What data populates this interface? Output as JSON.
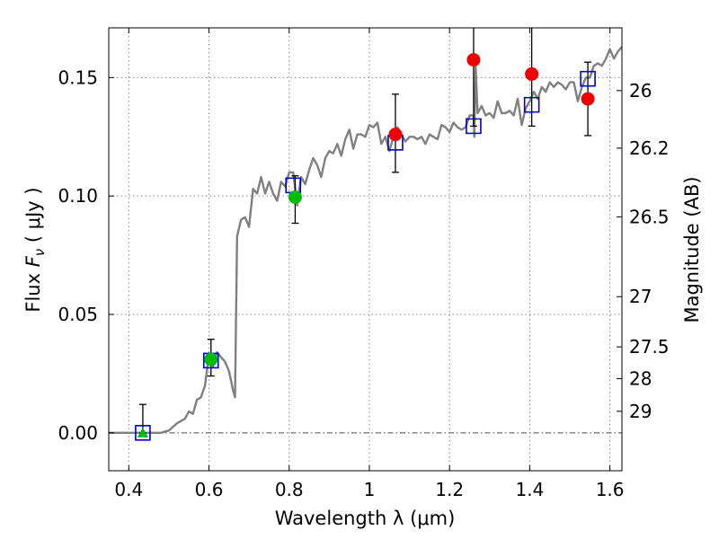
{
  "chart_data": {
    "type": "scatter",
    "title": "",
    "xlabel": "Wavelength  λ (μm)",
    "ylabel": "Flux  F_ν  ( μJy )",
    "ylabel_parts": {
      "pre": "Flux  ",
      "symbol": "F",
      "sub": "ν",
      "unit": "  ( μJy )"
    },
    "y2label": "Magnitude (AB)",
    "xlim": [
      0.35,
      1.63
    ],
    "ylim": [
      -0.016,
      0.171
    ],
    "grid": true,
    "x_ticks": [
      0.4,
      0.6,
      0.8,
      1.0,
      1.2,
      1.4,
      1.6
    ],
    "x_tick_labels": [
      "0.4",
      "0.6",
      "0.8",
      "1",
      "1.2",
      "1.4",
      "1.6"
    ],
    "y_ticks": [
      0.0,
      0.05,
      0.1,
      0.15
    ],
    "y_tick_labels": [
      "0.00",
      "0.05",
      "0.10",
      "0.15"
    ],
    "mag_ticks": [
      {
        "label": "26",
        "flux": 0.1445
      },
      {
        "label": "26.2",
        "flux": 0.1202
      },
      {
        "label": "26.5",
        "flux": 0.0912
      },
      {
        "label": "27",
        "flux": 0.0575
      },
      {
        "label": "27.5",
        "flux": 0.0363
      },
      {
        "label": "28",
        "flux": 0.0229
      },
      {
        "label": "29",
        "flux": 0.0091
      }
    ],
    "zero_line": 0.0,
    "colors": {
      "model": "#808080",
      "model_photometry": "#0000cc",
      "green": "#00bb00",
      "red": "#ee0000",
      "errorbar": "#000000",
      "grid": "#888888"
    },
    "series": [
      {
        "kind": "line",
        "x": [
          0.35,
          0.4,
          0.45,
          0.48,
          0.5,
          0.52,
          0.54,
          0.55,
          0.56,
          0.57,
          0.58,
          0.59,
          0.6,
          0.61,
          0.62,
          0.63,
          0.64,
          0.65,
          0.66,
          0.665,
          0.67,
          0.68,
          0.69,
          0.7,
          0.71,
          0.72,
          0.73,
          0.74,
          0.75,
          0.76,
          0.77,
          0.78,
          0.79,
          0.8,
          0.81,
          0.82,
          0.83,
          0.84,
          0.85,
          0.86,
          0.87,
          0.88,
          0.89,
          0.9,
          0.91,
          0.92,
          0.93,
          0.94,
          0.95,
          0.96,
          0.97,
          0.98,
          0.99,
          1.0,
          1.01,
          1.02,
          1.03,
          1.04,
          1.05,
          1.06,
          1.07,
          1.08,
          1.09,
          1.1,
          1.11,
          1.12,
          1.13,
          1.14,
          1.15,
          1.16,
          1.17,
          1.18,
          1.19,
          1.2,
          1.21,
          1.22,
          1.23,
          1.24,
          1.25,
          1.26,
          1.262,
          1.265,
          1.27,
          1.28,
          1.29,
          1.3,
          1.31,
          1.32,
          1.33,
          1.34,
          1.35,
          1.36,
          1.37,
          1.38,
          1.39,
          1.4,
          1.41,
          1.42,
          1.43,
          1.44,
          1.45,
          1.46,
          1.47,
          1.48,
          1.49,
          1.5,
          1.51,
          1.52,
          1.53,
          1.54,
          1.55,
          1.56,
          1.57,
          1.58,
          1.59,
          1.6,
          1.61,
          1.62,
          1.63
        ],
        "y": [
          0.0,
          0.0,
          0.0,
          0.0,
          0.001,
          0.004,
          0.006,
          0.009,
          0.008,
          0.014,
          0.015,
          0.02,
          0.033,
          0.028,
          0.034,
          0.032,
          0.03,
          0.026,
          0.018,
          0.015,
          0.083,
          0.09,
          0.091,
          0.087,
          0.103,
          0.101,
          0.108,
          0.101,
          0.106,
          0.101,
          0.098,
          0.106,
          0.104,
          0.11,
          0.11,
          0.096,
          0.108,
          0.105,
          0.111,
          0.116,
          0.113,
          0.108,
          0.116,
          0.119,
          0.118,
          0.122,
          0.117,
          0.124,
          0.128,
          0.12,
          0.126,
          0.126,
          0.125,
          0.13,
          0.129,
          0.131,
          0.122,
          0.125,
          0.119,
          0.125,
          0.129,
          0.126,
          0.123,
          0.125,
          0.125,
          0.124,
          0.125,
          0.122,
          0.126,
          0.125,
          0.124,
          0.13,
          0.129,
          0.127,
          0.131,
          0.129,
          0.128,
          0.129,
          0.134,
          0.134,
          0.125,
          0.155,
          0.135,
          0.138,
          0.134,
          0.135,
          0.133,
          0.14,
          0.135,
          0.135,
          0.136,
          0.134,
          0.141,
          0.13,
          0.137,
          0.14,
          0.144,
          0.141,
          0.146,
          0.144,
          0.148,
          0.146,
          0.148,
          0.147,
          0.145,
          0.148,
          0.148,
          0.14,
          0.146,
          0.15,
          0.15,
          0.155,
          0.156,
          0.155,
          0.158,
          0.162,
          0.158,
          0.161,
          0.163
        ]
      },
      {
        "kind": "open-square",
        "x": [
          0.435,
          0.605,
          0.81,
          1.065,
          1.26,
          1.405,
          1.545
        ],
        "y": [
          0.0,
          0.0305,
          0.1045,
          0.1225,
          0.1295,
          0.1385,
          0.1495
        ]
      },
      {
        "kind": "filled-triangle",
        "color": "green",
        "x": [
          0.435
        ],
        "y": [
          0.0
        ],
        "yerr_low": [
          0.0
        ],
        "yerr_high": [
          0.012
        ]
      },
      {
        "kind": "filled-circle",
        "color": "green",
        "x": [
          0.605,
          0.815
        ],
        "y": [
          0.031,
          0.0995
        ],
        "yerr_low": [
          0.024,
          0.0885
        ],
        "yerr_high": [
          0.0395,
          0.1085
        ]
      },
      {
        "kind": "filled-circle",
        "color": "red",
        "x": [
          1.065,
          1.26,
          1.405,
          1.545
        ],
        "y": [
          0.126,
          0.1575,
          0.1515,
          0.141
        ],
        "yerr_low": [
          0.11,
          0.1295,
          0.1295,
          0.1255
        ],
        "yerr_high": [
          0.143,
          0.172,
          0.172,
          0.1565
        ]
      }
    ]
  }
}
